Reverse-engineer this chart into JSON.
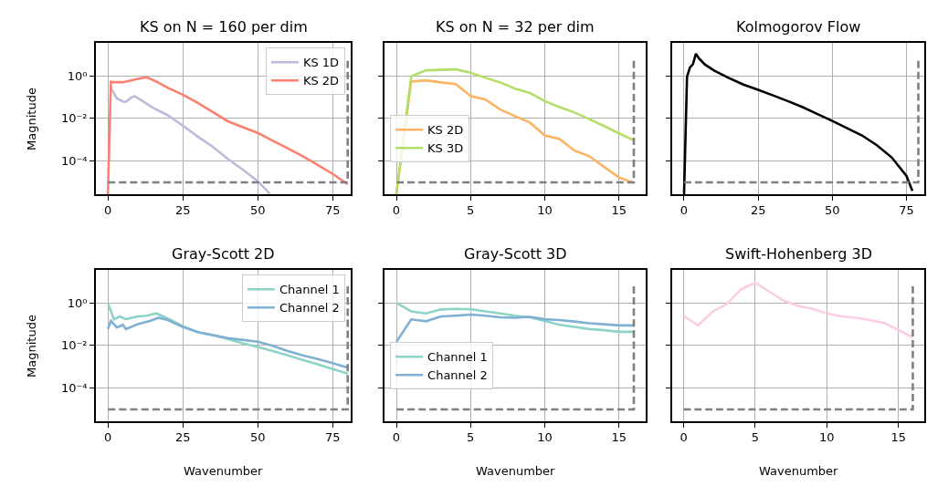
{
  "chart_data": [
    {
      "type": "line",
      "title": "KS on N = 160 per dim",
      "ylabel": "Magnitude",
      "log": "y",
      "grid": true,
      "legend": "top right",
      "xlim": [
        -4,
        81
      ],
      "xticks": [
        0,
        25,
        50,
        75
      ],
      "ylim": [
        2.8e-06,
        35
      ],
      "yticks": [
        {
          "value": 1,
          "label": "10⁰"
        },
        {
          "value": 0.01,
          "label": "10⁻²"
        },
        {
          "value": 0.0001,
          "label": "10⁻⁴"
        }
      ],
      "series": [
        {
          "name": "KS 1D",
          "color": "#bebada",
          "x": [
            1,
            3,
            5,
            6,
            8,
            9,
            11,
            15,
            20,
            25,
            30,
            35,
            40,
            45,
            50,
            54
          ],
          "values": [
            0.27,
            0.087,
            0.063,
            0.06,
            0.1,
            0.11,
            0.073,
            0.032,
            0.014,
            0.0046,
            0.0014,
            0.00047,
            0.000126,
            4e-05,
            1.15e-05,
            3e-06
          ]
        },
        {
          "name": "KS 2D",
          "color": "#fb8072",
          "x": [
            0,
            1,
            2,
            5,
            10,
            13,
            16,
            20,
            25,
            30,
            35,
            40,
            45,
            50,
            55,
            60,
            65,
            70,
            75,
            80
          ],
          "values": [
            2.8e-06,
            0.52,
            0.5,
            0.5,
            0.72,
            0.85,
            0.55,
            0.27,
            0.13,
            0.053,
            0.02,
            0.0074,
            0.0039,
            0.0021,
            0.0009,
            0.0004,
            0.00017,
            6.6e-05,
            2.5e-05,
            8.3e-06
          ]
        },
        {
          "color": "#808080",
          "line_style": "dashed",
          "x": [
            0,
            80,
            80
          ],
          "values": [
            1e-05,
            1e-05,
            5
          ]
        }
      ]
    },
    {
      "type": "line",
      "title": "KS on N = 32 per dim",
      "log": "y",
      "grid": true,
      "legend": "bottom left",
      "tick_labels": "x",
      "xlim": [
        -0.8,
        16.8
      ],
      "xticks": [
        0,
        5,
        10,
        15
      ],
      "ylim": [
        2.8e-06,
        35
      ],
      "yticks": [
        {
          "value": 1,
          "label": null
        },
        {
          "value": 0.01,
          "label": null
        },
        {
          "value": 0.0001,
          "label": null
        }
      ],
      "series": [
        {
          "name": "KS 2D",
          "color": "#fdb462",
          "x": [
            0,
            1,
            2,
            3,
            4,
            5,
            6,
            7,
            8,
            9,
            10,
            11,
            12,
            13,
            14,
            15,
            16
          ],
          "values": [
            2.8e-06,
            0.54,
            0.61,
            0.49,
            0.41,
            0.113,
            0.076,
            0.026,
            0.0128,
            0.0064,
            0.0016,
            0.00108,
            0.00031,
            0.00017,
            5.3e-05,
            1.7e-05,
            9.5e-06
          ]
        },
        {
          "name": "KS 3D",
          "color": "#b3de69",
          "x": [
            0,
            1,
            2,
            4,
            5,
            6,
            7,
            8,
            9,
            10,
            11,
            12,
            13,
            14,
            15,
            16
          ],
          "values": [
            2.8e-06,
            0.94,
            1.8,
            2.0,
            1.38,
            0.8,
            0.49,
            0.25,
            0.156,
            0.065,
            0.034,
            0.019,
            0.0093,
            0.0044,
            0.002,
            0.00094
          ]
        },
        {
          "color": "#808080",
          "line_style": "dashed",
          "x": [
            0,
            16,
            16
          ],
          "values": [
            1e-05,
            1e-05,
            5
          ]
        }
      ]
    },
    {
      "type": "line",
      "title": "Kolmogorov Flow",
      "log": "y",
      "grid": true,
      "tick_labels": "x",
      "xlim": [
        -4,
        81
      ],
      "xticks": [
        0,
        25,
        50,
        75
      ],
      "ylim": [
        2.8e-06,
        35
      ],
      "yticks": [
        {
          "value": 1,
          "label": null
        },
        {
          "value": 0.01,
          "label": null
        },
        {
          "value": 0.0001,
          "label": null
        }
      ],
      "series": [
        {
          "color": "#000000",
          "x": [
            0,
            1,
            2,
            3,
            4,
            5,
            7,
            10,
            15,
            20,
            25,
            30,
            35,
            40,
            45,
            50,
            55,
            60,
            65,
            70,
            75,
            77
          ],
          "values": [
            2.8e-06,
            0.9,
            2.5,
            3.5,
            10.8,
            6.6,
            3.4,
            1.8,
            0.8,
            0.39,
            0.22,
            0.12,
            0.065,
            0.034,
            0.016,
            0.0076,
            0.0035,
            0.0016,
            0.00056,
            0.00015,
            2e-05,
            4e-06
          ]
        },
        {
          "color": "#808080",
          "line_style": "dashed",
          "x": [
            0,
            79,
            79
          ],
          "values": [
            1e-05,
            1e-05,
            5
          ]
        }
      ]
    },
    {
      "type": "line",
      "title": "Gray-Scott 2D",
      "xlabel": "Wavenumber",
      "ylabel": "Magnitude",
      "log": "y",
      "grid": true,
      "legend": "top right",
      "xlim": [
        -4,
        81
      ],
      "xticks": [
        0,
        25,
        50,
        75
      ],
      "ylim": [
        2.8e-06,
        35
      ],
      "yticks": [
        {
          "value": 1,
          "label": "10⁰"
        },
        {
          "value": 0.01,
          "label": "10⁻²"
        },
        {
          "value": 0.0001,
          "label": "10⁻⁴"
        }
      ],
      "series": [
        {
          "name": "Channel 1",
          "color": "#8dd3c7",
          "x": [
            0,
            2,
            4,
            6,
            10,
            13,
            16,
            18,
            21,
            25,
            30,
            35,
            40,
            45,
            50,
            55,
            60,
            65,
            70,
            75,
            80
          ],
          "values": [
            1.0,
            0.17,
            0.23,
            0.17,
            0.23,
            0.25,
            0.32,
            0.25,
            0.156,
            0.08,
            0.042,
            0.031,
            0.02,
            0.0127,
            0.0085,
            0.0055,
            0.0034,
            0.0021,
            0.0013,
            0.00078,
            0.00048
          ]
        },
        {
          "name": "Channel 2",
          "color": "#80b1d3",
          "x": [
            0,
            1,
            3,
            5,
            6,
            10,
            14,
            17,
            20,
            25,
            30,
            40,
            50,
            55,
            60,
            65,
            70,
            75,
            80
          ],
          "values": [
            0.059,
            0.142,
            0.07,
            0.093,
            0.059,
            0.1,
            0.142,
            0.2,
            0.156,
            0.074,
            0.042,
            0.022,
            0.015,
            0.0097,
            0.0055,
            0.0034,
            0.0023,
            0.0015,
            0.0009
          ]
        },
        {
          "color": "#808080",
          "line_style": "dashed",
          "x": [
            0,
            80,
            80
          ],
          "values": [
            1e-05,
            1e-05,
            6
          ]
        }
      ]
    },
    {
      "type": "line",
      "title": "Gray-Scott 3D",
      "xlabel": "Wavenumber",
      "log": "y",
      "grid": true,
      "legend": "bottom left",
      "tick_labels": "x",
      "xlim": [
        -0.8,
        16.8
      ],
      "xticks": [
        0,
        5,
        10,
        15
      ],
      "ylim": [
        2.8e-06,
        35
      ],
      "yticks": [
        {
          "value": 1,
          "label": null
        },
        {
          "value": 0.01,
          "label": null
        },
        {
          "value": 0.0001,
          "label": null
        }
      ],
      "series": [
        {
          "name": "Channel 1",
          "color": "#8dd3c7",
          "x": [
            0,
            1,
            2,
            3,
            4,
            5,
            6,
            7,
            8,
            9,
            10,
            11,
            12,
            13,
            14,
            15,
            16
          ],
          "values": [
            1.0,
            0.4,
            0.32,
            0.49,
            0.52,
            0.5,
            0.4,
            0.32,
            0.25,
            0.21,
            0.142,
            0.093,
            0.074,
            0.059,
            0.052,
            0.044,
            0.044
          ]
        },
        {
          "name": "Channel 2",
          "color": "#80b1d3",
          "x": [
            0,
            1,
            2,
            3,
            4,
            5,
            6,
            7,
            8,
            9,
            10,
            11,
            12,
            13,
            14,
            15,
            16
          ],
          "values": [
            0.0146,
            0.167,
            0.137,
            0.23,
            0.25,
            0.28,
            0.25,
            0.21,
            0.2,
            0.22,
            0.17,
            0.156,
            0.133,
            0.11,
            0.099,
            0.087,
            0.087
          ]
        },
        {
          "color": "#808080",
          "line_style": "dashed",
          "x": [
            0,
            16,
            16
          ],
          "values": [
            1e-05,
            1e-05,
            6
          ]
        }
      ]
    },
    {
      "type": "line",
      "title": "Swift-Hohenberg 3D",
      "xlabel": "Wavenumber",
      "log": "y",
      "grid": true,
      "tick_labels": "x",
      "xlim": [
        -0.8,
        16.8
      ],
      "xticks": [
        0,
        5,
        10,
        15
      ],
      "ylim": [
        2.8e-06,
        35
      ],
      "yticks": [
        {
          "value": 1,
          "label": null
        },
        {
          "value": 0.01,
          "label": null
        },
        {
          "value": 0.0001,
          "label": null
        }
      ],
      "series": [
        {
          "color": "#fccde5",
          "x": [
            0,
            1,
            2,
            3,
            4,
            5,
            6,
            7,
            8,
            9,
            10,
            11,
            12,
            13,
            14,
            15,
            16
          ],
          "values": [
            0.25,
            0.087,
            0.38,
            0.85,
            4.3,
            8.8,
            3.3,
            1.25,
            0.72,
            0.52,
            0.32,
            0.23,
            0.2,
            0.156,
            0.113,
            0.053,
            0.024
          ]
        },
        {
          "color": "#808080",
          "line_style": "dashed",
          "x": [
            0,
            16,
            16
          ],
          "values": [
            1e-05,
            1e-05,
            6
          ]
        }
      ]
    }
  ]
}
